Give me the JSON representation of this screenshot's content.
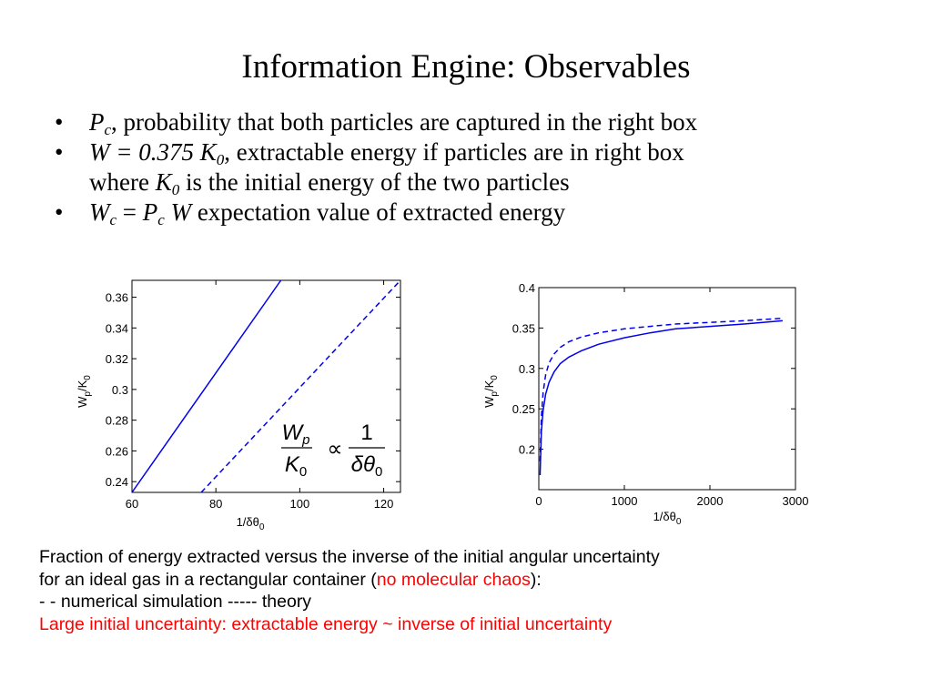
{
  "title": "Information Engine: Observables",
  "bullets": {
    "b1": {
      "sym": "P",
      "sub": "c",
      "text": ", probability that both particles are captured in the right box"
    },
    "b2": {
      "formula_a": "W = 0.375 K",
      "formula_sub": "0",
      "text": ", extractable energy if particles are in right box",
      "line2_prefix": "where ",
      "line2_sym": "K",
      "line2_sub": "0",
      "line2_text": " is the initial energy of the two particles"
    },
    "b3": {
      "w": "W",
      "w_sub": "c",
      "eq": " = ",
      "p": "P",
      "p_sub": "c",
      "w2": " W",
      "text": " expectation value of extracted energy"
    }
  },
  "caption": {
    "line1": "Fraction of energy extracted versus the inverse of the initial angular uncertainty",
    "line2_pre": "for an ideal gas in a rectangular container (",
    "line2_red": "no molecular chaos",
    "line2_post": "):",
    "line3": "- - numerical simulation  ----- theory",
    "line4": "Large initial uncertainty:  extractable energy ~ inverse of initial uncertainty"
  },
  "colors": {
    "series": "#0000ee",
    "highlight": "#ff0000",
    "text": "#000000"
  },
  "chart_data": [
    {
      "type": "line",
      "xlabel": "1/δθ",
      "xlabel_sub": "0",
      "ylabel": "W",
      "ylabel_sub": "p",
      "ylabel_tail": "/K",
      "ylabel_sub2": "0",
      "xlim": [
        60,
        124
      ],
      "ylim": [
        0.233,
        0.371
      ],
      "xticks": [
        "60",
        "80",
        "100",
        "120"
      ],
      "yticks": [
        "0.24",
        "0.26",
        "0.28",
        "0.3",
        "0.32",
        "0.34",
        "0.36"
      ],
      "annotation": {
        "lhs_num": "W",
        "lhs_num_sub": "p",
        "lhs_den": "K",
        "lhs_den_sub": "0",
        "op": "∝",
        "rhs_num": "1",
        "rhs_den": "δθ",
        "rhs_den_sub": "0"
      },
      "series": [
        {
          "style": "solid",
          "x": [
            60,
            95.5
          ],
          "y": [
            0.233,
            0.371
          ]
        },
        {
          "style": "dashed",
          "x": [
            76.5,
            124
          ],
          "y": [
            0.233,
            0.371
          ]
        }
      ]
    },
    {
      "type": "line",
      "xlabel": "1/δθ",
      "xlabel_sub": "0",
      "ylabel": "W",
      "ylabel_sub": "p",
      "ylabel_tail": "/K",
      "ylabel_sub2": "0",
      "xlim": [
        0,
        3000
      ],
      "ylim": [
        0.15,
        0.4
      ],
      "xticks": [
        "0",
        "1000",
        "2000",
        "3000"
      ],
      "yticks": [
        "0.2",
        "0.25",
        "0.3",
        "0.35",
        "0.4"
      ],
      "series": [
        {
          "style": "solid",
          "x": [
            15,
            30,
            50,
            80,
            120,
            180,
            250,
            350,
            500,
            700,
            1000,
            1300,
            1600,
            2000,
            2400,
            2850
          ],
          "y": [
            0.168,
            0.222,
            0.248,
            0.268,
            0.283,
            0.296,
            0.306,
            0.314,
            0.322,
            0.33,
            0.338,
            0.344,
            0.349,
            0.352,
            0.355,
            0.359
          ]
        },
        {
          "style": "dashed",
          "x": [
            15,
            30,
            50,
            80,
            120,
            180,
            250,
            350,
            500,
            700,
            1000,
            1300,
            1600,
            2000,
            2400,
            2850
          ],
          "y": [
            0.185,
            0.24,
            0.27,
            0.292,
            0.307,
            0.318,
            0.326,
            0.333,
            0.339,
            0.344,
            0.349,
            0.352,
            0.355,
            0.357,
            0.359,
            0.362
          ]
        }
      ]
    }
  ]
}
